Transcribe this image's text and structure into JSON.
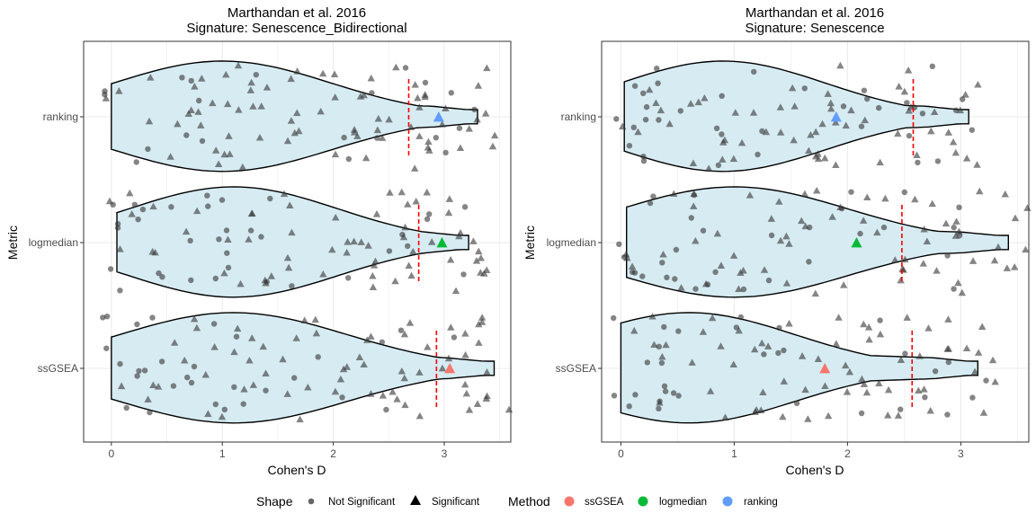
{
  "chart_data": [
    {
      "type": "violin",
      "title": "Marthandan et al. 2016",
      "subtitle": "Signature: Senescence_Bidirectional",
      "xlabel": "Cohen's D",
      "ylabel": "Metric",
      "xlim": [
        -0.25,
        3.6
      ],
      "x_ticks": [
        0,
        1,
        2,
        3
      ],
      "categories": [
        "ranking",
        "logmedian",
        "ssGSEA"
      ],
      "grid": true,
      "violins": [
        {
          "category": "ranking",
          "min": 0.0,
          "max": 3.3,
          "mode": 1.0
        },
        {
          "category": "logmedian",
          "min": 0.05,
          "max": 3.22,
          "mode": 1.1
        },
        {
          "category": "ssGSEA",
          "min": 0.0,
          "max": 3.45,
          "mode": 1.1
        }
      ],
      "method_points": [
        {
          "category": "ranking",
          "method": "ranking",
          "x": 2.95,
          "shape": "Significant"
        },
        {
          "category": "logmedian",
          "method": "logmedian",
          "x": 2.98,
          "shape": "Significant"
        },
        {
          "category": "ssGSEA",
          "method": "ssGSEA",
          "x": 3.05,
          "shape": "Significant"
        }
      ],
      "thresholds": [
        {
          "category": "ranking",
          "x": 2.68
        },
        {
          "category": "logmedian",
          "x": 2.77
        },
        {
          "category": "ssGSEA",
          "x": 2.93
        }
      ]
    },
    {
      "type": "violin",
      "title": "Marthandan et al. 2016",
      "subtitle": "Signature: Senescence",
      "xlabel": "Cohen's D",
      "ylabel": "Metric",
      "xlim": [
        -0.17,
        3.6
      ],
      "x_ticks": [
        0,
        1,
        2,
        3
      ],
      "categories": [
        "ranking",
        "logmedian",
        "ssGSEA"
      ],
      "grid": true,
      "violins": [
        {
          "category": "ranking",
          "min": 0.03,
          "max": 3.07,
          "mode": 0.9
        },
        {
          "category": "logmedian",
          "min": 0.05,
          "max": 3.42,
          "mode": 1.0
        },
        {
          "category": "ssGSEA",
          "min": 0.0,
          "max": 3.15,
          "mode": 0.6
        }
      ],
      "method_points": [
        {
          "category": "ranking",
          "method": "ranking",
          "x": 1.9,
          "shape": "Significant"
        },
        {
          "category": "logmedian",
          "method": "logmedian",
          "x": 2.08,
          "shape": "Significant"
        },
        {
          "category": "ssGSEA",
          "method": "ssGSEA",
          "x": 1.8,
          "shape": "Significant"
        }
      ],
      "thresholds": [
        {
          "category": "ranking",
          "x": 2.58
        },
        {
          "category": "logmedian",
          "x": 2.48
        },
        {
          "category": "ssGSEA",
          "x": 2.57
        }
      ]
    }
  ],
  "legend": {
    "shape_title": "Shape",
    "shape_items": [
      {
        "label": "Not Significant",
        "symbol": "circle"
      },
      {
        "label": "Significant",
        "symbol": "triangle"
      }
    ],
    "method_title": "Method",
    "method_items": [
      {
        "label": "ssGSEA",
        "color": "#F8766D"
      },
      {
        "label": "logmedian",
        "color": "#00BA38"
      },
      {
        "label": "ranking",
        "color": "#619CFF"
      }
    ]
  },
  "colors": {
    "violin_fill": "#d6ebf2",
    "threshold": "#ff0000",
    "grid": "#ebebeb",
    "scatter": "#333333"
  }
}
